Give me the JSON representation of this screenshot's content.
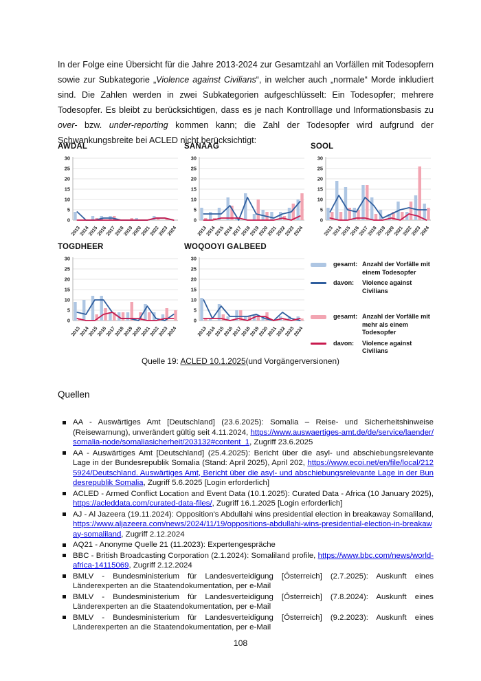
{
  "intro": {
    "p1": "In der Folge eine Übersicht für die Jahre 2013-2024 zur Gesamtzahl an Vorfällen mit Todesopfern sowie zur Subkategorie „",
    "p2": "Violence against Civilians",
    "p3": "“, in welcher auch „normale“ Morde inkludiert sind. Die Zahlen werden in zwei Subkategorien aufgeschlüsselt: Ein Todesopfer; mehrere Todesopfer. Es bleibt zu berücksichtigen, dass es je nach Kontrolllage und Informationsbasis zu ",
    "p4": "over-",
    "p5": " bzw. ",
    "p6": "under-reporting",
    "p7": " kommen kann; die Zahl der Todesopfer wird aufgrund der Schwankungsbreite bei ACLED nicht berücksichtigt:"
  },
  "colors": {
    "bar_one_fatality": "#aec6e3",
    "line_vac_one": "#2f5e9e",
    "bar_multi_fatality": "#f2a5b2",
    "line_vac_multi": "#c81a4e",
    "link": "#0000dd"
  },
  "chart_data": [
    {
      "type": "bar",
      "title": "AWDAL",
      "categories": [
        "2013",
        "2014",
        "2015",
        "2016",
        "2017",
        "2018",
        "2019",
        "2020",
        "2021",
        "2022",
        "2023",
        "2024"
      ],
      "ylim": [
        0,
        30
      ],
      "yticks": [
        0,
        5,
        10,
        15,
        20,
        25,
        30
      ],
      "grid": true,
      "series": [
        {
          "name": "gesamt: Anzahl der Vorfälle mit einem Todesopfer",
          "type": "bar",
          "color": "#aec6e3",
          "values": [
            4,
            0,
            2,
            2,
            2,
            0,
            0,
            1,
            0,
            2,
            0,
            0
          ]
        },
        {
          "name": "davon: Violence against Civilians",
          "type": "line",
          "color": "#2f5e9e",
          "values": [
            4,
            0,
            0,
            1,
            1,
            0,
            0,
            0,
            0,
            1,
            1,
            0
          ]
        },
        {
          "name": "gesamt: Anzahl der Vorfälle mit mehr als einem Todesopfer",
          "type": "bar",
          "color": "#f2a5b2",
          "values": [
            0,
            0,
            1,
            0,
            2,
            0,
            1,
            0,
            0,
            1,
            1,
            0
          ]
        },
        {
          "name": "davon: Violence against Civilians",
          "type": "line",
          "color": "#c81a4e",
          "values": [
            0,
            0,
            0,
            0,
            0,
            0,
            0,
            0,
            0,
            1,
            1,
            0
          ]
        }
      ]
    },
    {
      "type": "bar",
      "title": "SANAAG",
      "categories": [
        "2013",
        "2014",
        "2015",
        "2016",
        "2017",
        "2018",
        "2019",
        "2020",
        "2021",
        "2022",
        "2023",
        "2024"
      ],
      "ylim": [
        0,
        30
      ],
      "yticks": [
        0,
        5,
        10,
        15,
        20,
        25,
        30
      ],
      "grid": true,
      "series": [
        {
          "name": "gesamt: Anzahl der Vorfälle mit einem Todesopfer",
          "type": "bar",
          "color": "#aec6e3",
          "values": [
            6,
            4,
            6,
            11,
            1,
            13,
            3,
            5,
            4,
            4,
            6,
            10
          ]
        },
        {
          "name": "davon: Violence against Civilians",
          "type": "line",
          "color": "#2f5e9e",
          "values": [
            3,
            3,
            3,
            7,
            0,
            11,
            3,
            2,
            1,
            3,
            4,
            9
          ]
        },
        {
          "name": "gesamt: Anzahl der Vorfälle mit mehr als einem Todesopfer",
          "type": "bar",
          "color": "#f2a5b2",
          "values": [
            1,
            1,
            0,
            7,
            0,
            0,
            10,
            4,
            0,
            2,
            8,
            13
          ]
        },
        {
          "name": "davon: Violence against Civilians",
          "type": "line",
          "color": "#c81a4e",
          "values": [
            0,
            0,
            1,
            1,
            1,
            0,
            0,
            0,
            0,
            1,
            0,
            2
          ]
        }
      ]
    },
    {
      "type": "bar",
      "title": "SOOL",
      "categories": [
        "2013",
        "2014",
        "2015",
        "2016",
        "2017",
        "2018",
        "2019",
        "2020",
        "2021",
        "2022",
        "2023",
        "2024"
      ],
      "ylim": [
        0,
        30
      ],
      "yticks": [
        0,
        5,
        10,
        15,
        20,
        25,
        30
      ],
      "grid": true,
      "series": [
        {
          "name": "gesamt: Anzahl der Vorfälle mit einem Todesopfer",
          "type": "bar",
          "color": "#aec6e3",
          "values": [
            6,
            19,
            16,
            6,
            17,
            11,
            5,
            3,
            9,
            4,
            12,
            8
          ]
        },
        {
          "name": "davon: Violence against Civilians",
          "type": "line",
          "color": "#2f5e9e",
          "values": [
            4,
            12,
            5,
            4,
            11,
            7,
            1,
            3,
            5,
            6,
            5,
            5
          ]
        },
        {
          "name": "gesamt: Anzahl der Vorfälle mit mehr als einem Todesopfer",
          "type": "bar",
          "color": "#f2a5b2",
          "values": [
            4,
            4,
            6,
            5,
            17,
            3,
            0,
            4,
            4,
            9,
            26,
            6
          ]
        },
        {
          "name": "davon: Violence against Civilians",
          "type": "line",
          "color": "#c81a4e",
          "values": [
            1,
            0,
            0,
            1,
            1,
            0,
            0,
            1,
            0,
            3,
            2,
            0
          ]
        }
      ]
    },
    {
      "type": "bar",
      "title": "TOGDHEER",
      "categories": [
        "2013",
        "2014",
        "2015",
        "2016",
        "2017",
        "2018",
        "2019",
        "2020",
        "2021",
        "2022",
        "2023",
        "2024"
      ],
      "ylim": [
        0,
        30
      ],
      "yticks": [
        0,
        5,
        10,
        15,
        20,
        25,
        30
      ],
      "grid": true,
      "series": [
        {
          "name": "gesamt: Anzahl der Vorfälle mit einem Todesopfer",
          "type": "bar",
          "color": "#aec6e3",
          "values": [
            9,
            10,
            12,
            12,
            4,
            4,
            4,
            0,
            8,
            4,
            3,
            0
          ]
        },
        {
          "name": "davon: Violence against Civilians",
          "type": "line",
          "color": "#2f5e9e",
          "values": [
            4,
            3,
            10,
            10,
            4,
            1,
            1,
            0,
            7,
            1,
            0,
            3
          ]
        },
        {
          "name": "gesamt: Anzahl der Vorfälle mit mehr als einem Todesopfer",
          "type": "bar",
          "color": "#f2a5b2",
          "values": [
            1,
            0,
            3,
            6,
            4,
            4,
            9,
            4,
            4,
            0,
            6,
            5
          ]
        },
        {
          "name": "davon: Violence against Civilians",
          "type": "line",
          "color": "#c81a4e",
          "values": [
            1,
            0,
            0,
            3,
            4,
            1,
            1,
            1,
            0,
            0,
            1,
            1
          ]
        }
      ]
    },
    {
      "type": "bar",
      "title": "WOQOOYI GALBEED",
      "categories": [
        "2013",
        "2014",
        "2015",
        "2016",
        "2017",
        "2018",
        "2019",
        "2020",
        "2021",
        "2022",
        "2023",
        "2024"
      ],
      "ylim": [
        0,
        30
      ],
      "yticks": [
        0,
        5,
        10,
        15,
        20,
        25,
        30
      ],
      "grid": true,
      "series": [
        {
          "name": "gesamt: Anzahl der Vorfälle mit einem Todesopfer",
          "type": "bar",
          "color": "#aec6e3",
          "values": [
            11,
            1,
            8,
            2,
            5,
            2,
            3,
            2,
            0,
            2,
            2,
            2
          ]
        },
        {
          "name": "davon: Violence against Civilians",
          "type": "line",
          "color": "#2f5e9e",
          "values": [
            10,
            1,
            7,
            2,
            2,
            2,
            3,
            1,
            0,
            4,
            1,
            0
          ]
        },
        {
          "name": "gesamt: Anzahl der Vorfälle mit mehr als einem Todesopfer",
          "type": "bar",
          "color": "#f2a5b2",
          "values": [
            1,
            0,
            3,
            0,
            5,
            2,
            2,
            4,
            0,
            1,
            0,
            1
          ]
        },
        {
          "name": "davon: Violence against Civilians",
          "type": "line",
          "color": "#c81a4e",
          "values": [
            1,
            1,
            1,
            0,
            1,
            0,
            2,
            2,
            0,
            1,
            0,
            1
          ]
        }
      ]
    }
  ],
  "legend": {
    "items": [
      {
        "prefix": "gesamt:",
        "text": "Anzahl der Vorfälle mit einem Todesopfer"
      },
      {
        "prefix": "davon:",
        "text": "Violence against Civilians"
      },
      {
        "prefix": "gesamt:",
        "text": "Anzahl der Vorfälle mit mehr als einem Todesopfer"
      },
      {
        "prefix": "davon:",
        "text": "Violence against Civilians"
      }
    ]
  },
  "quelle": {
    "label": "Quelle 19: ",
    "link": "ACLED 10.1.2025",
    "suffix": "(und Vorgängerversionen)"
  },
  "sources": {
    "heading": "Quellen",
    "items": [
      {
        "pre": "AA - Auswärtiges Amt [Deutschland] (23.6.2025): Somalia – Reise- und Sicherheitshinweise (Reisewarnung), unverändert gültig seit 4.11.2024, ",
        "link": "https://www.auswaertiges-amt.de/de/service/laender/somalia-node/somaliasicherheit/203132#content_1",
        "post": ", Zugriff 23.6.2025"
      },
      {
        "pre": "AA - Auswärtiges Amt [Deutschland] (25.4.2025): Bericht über die asyl- und abschiebungsrelevante Lage in der Bundesrepublik Somalia (Stand: April 2025), April 202, ",
        "link": "https://www.ecoi.net/en/file/local/2125924/Deutschland. Auswärtiges Amt, Bericht über die asyl- und abschiebungsrelevante Lage in der Bundesrepublik Somalia",
        "post": ", Zugriff 5.6.2025 [Login erforderlich]"
      },
      {
        "pre": "ACLED - Armed Conflict Location and Event Data (10.1.2025): Curated Data - Africa (10 January 2025), ",
        "link": "https://acleddata.com/curated-data-files/",
        "post": ", Zugriff 16.1.2025 [Login erforderlich]"
      },
      {
        "pre": "AJ - Al Jazeera (19.11.2024): Opposition's Abdullahi wins presidential election in breakaway Somaliland, ",
        "link": "https://www.aljazeera.com/news/2024/11/19/oppositions-abdullahi-wins-presidential-election-in-breakaway-somaliland",
        "post": ", Zugriff 2.12.2024"
      },
      {
        "pre": "AQ21 - Anonyme Quelle 21 (11.2023): Expertengespräche",
        "link": "",
        "post": ""
      },
      {
        "pre": "BBC - British Broadcasting Corporation (2.1.2024): Somaliland profile, ",
        "link": "https://www.bbc.com/news/world-africa-14115069",
        "post": ", Zugriff 2.12.2024"
      },
      {
        "pre": "BMLV - Bundesministerium für Landesverteidigung [Österreich] (2.7.2025): Auskunft eines Länderexperten an die Staatendokumentation, per e-Mail",
        "link": "",
        "post": ""
      },
      {
        "pre": "BMLV - Bundesministerium für Landesverteidigung [Österreich] (7.8.2024): Auskunft eines Länderexperten an die Staatendokumentation, per e-Mail",
        "link": "",
        "post": ""
      },
      {
        "pre": "BMLV - Bundesministerium für Landesverteidigung [Österreich] (9.2.2023): Auskunft eines Länderexperten an die Staatendokumentation, per e-Mail",
        "link": "",
        "post": ""
      }
    ]
  },
  "page": {
    "number": "108"
  }
}
